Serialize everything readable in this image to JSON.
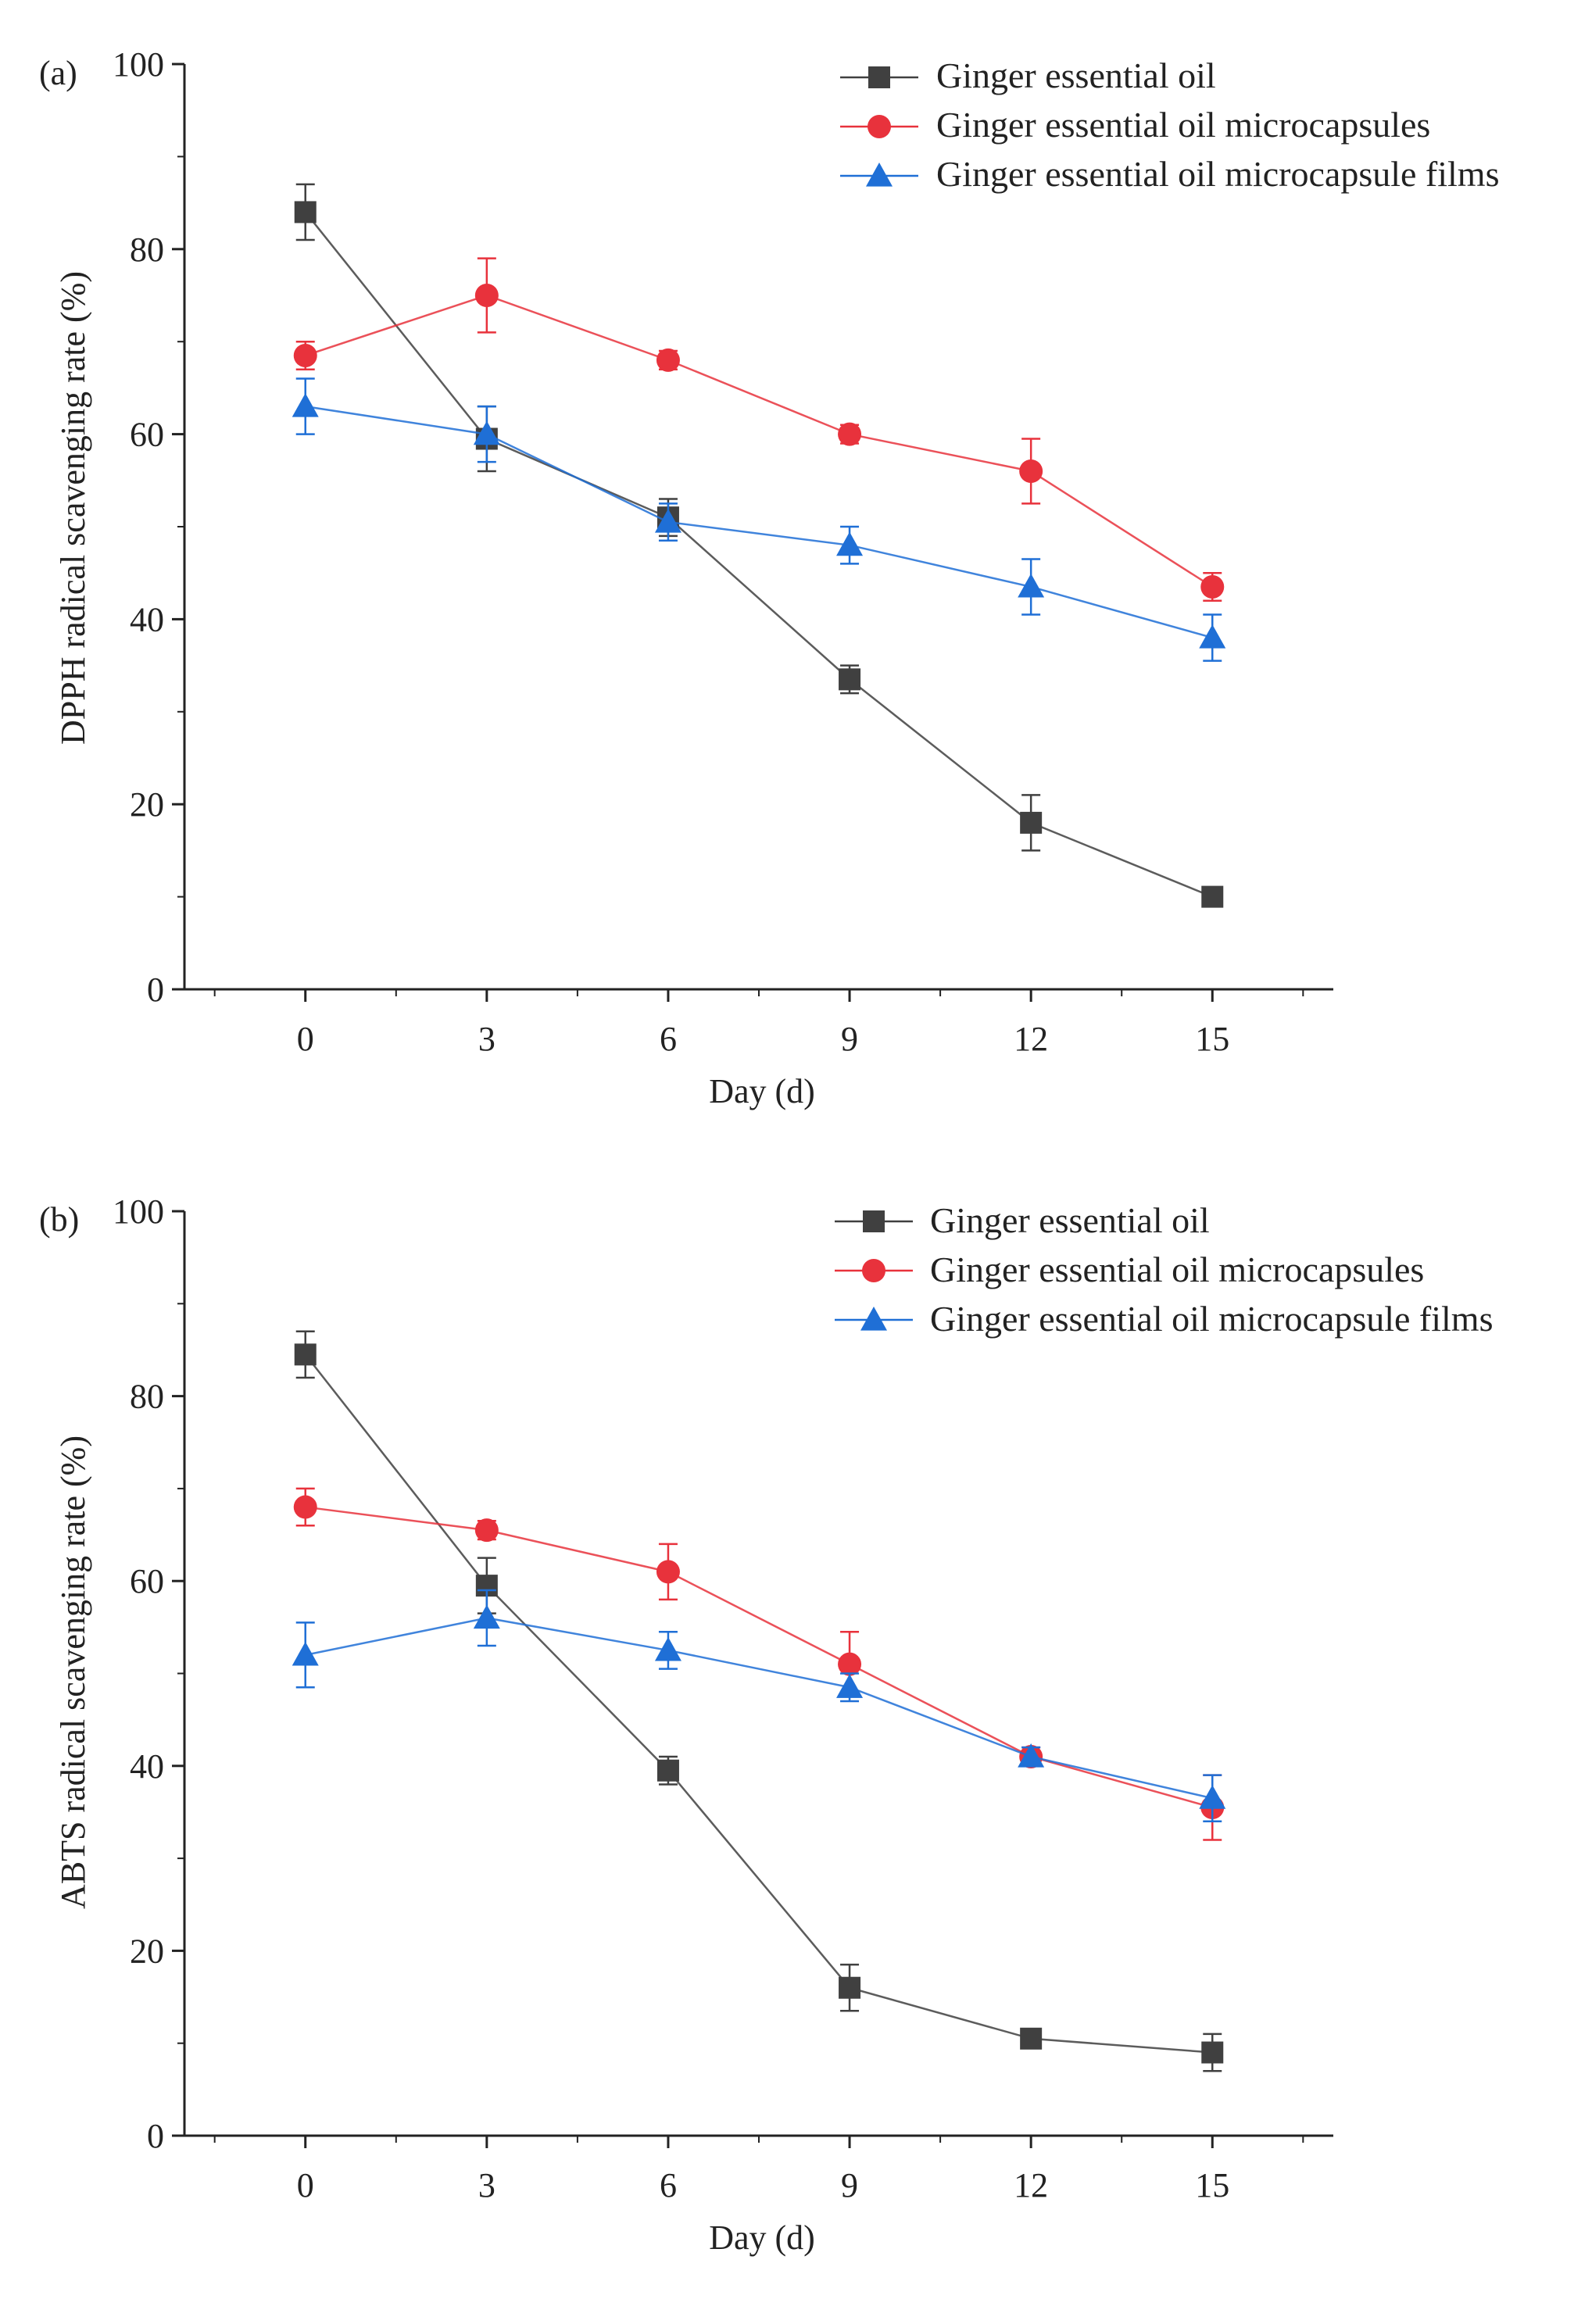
{
  "chart_data": [
    {
      "panel": "(a)",
      "type": "line",
      "title": "",
      "xlabel": "Day (d)",
      "ylabel": "DPPH radical scavenging rate (%)",
      "x": [
        0,
        3,
        6,
        9,
        12,
        15
      ],
      "x_ticks": [
        "0",
        "3",
        "6",
        "9",
        "12",
        "15"
      ],
      "y_ticks": [
        "0",
        "20",
        "40",
        "60",
        "80",
        "100"
      ],
      "xlim": [
        -2,
        17
      ],
      "ylim": [
        0,
        100
      ],
      "grid": false,
      "legend_position": "top-right",
      "series": [
        {
          "name": "Ginger essential oil",
          "color": "#404040",
          "marker": "square",
          "values": [
            84,
            59.5,
            51,
            33.5,
            18,
            10
          ],
          "errors": [
            3,
            3.5,
            2,
            1.5,
            3,
            1
          ]
        },
        {
          "name": "Ginger essential oil microcapsules",
          "color": "#e8323c",
          "marker": "circle",
          "values": [
            68.5,
            75,
            68,
            60,
            56,
            43.5
          ],
          "errors": [
            1.5,
            4,
            1,
            1,
            3.5,
            1.5
          ]
        },
        {
          "name": "Ginger essential oil microcapsule films",
          "color": "#1f6fd6",
          "marker": "triangle",
          "values": [
            63,
            60,
            50.5,
            48,
            43.5,
            38
          ],
          "errors": [
            3,
            3,
            2,
            2,
            3,
            2.5
          ]
        }
      ]
    },
    {
      "panel": "(b)",
      "type": "line",
      "title": "",
      "xlabel": "Day (d)",
      "ylabel": "ABTS radical scavenging rate (%)",
      "x": [
        0,
        3,
        6,
        9,
        12,
        15
      ],
      "x_ticks": [
        "0",
        "3",
        "6",
        "9",
        "12",
        "15"
      ],
      "y_ticks": [
        "0",
        "20",
        "40",
        "60",
        "80",
        "100"
      ],
      "xlim": [
        -2,
        17
      ],
      "ylim": [
        0,
        100
      ],
      "grid": false,
      "legend_position": "top-right",
      "series": [
        {
          "name": "Ginger essential oil",
          "color": "#404040",
          "marker": "square",
          "values": [
            84.5,
            59.5,
            39.5,
            16,
            10.5,
            9
          ],
          "errors": [
            2.5,
            3,
            1.5,
            2.5,
            1,
            2
          ]
        },
        {
          "name": "Ginger essential oil microcapsules",
          "color": "#e8323c",
          "marker": "circle",
          "values": [
            68,
            65.5,
            61,
            51,
            41,
            35.5
          ],
          "errors": [
            2,
            1,
            3,
            3.5,
            1,
            3.5
          ]
        },
        {
          "name": "Ginger essential oil microcapsule films",
          "color": "#1f6fd6",
          "marker": "triangle",
          "values": [
            52,
            56,
            52.5,
            48.5,
            41,
            36.5
          ],
          "errors": [
            3.5,
            3,
            2,
            1.5,
            1,
            2.5
          ]
        }
      ]
    }
  ]
}
